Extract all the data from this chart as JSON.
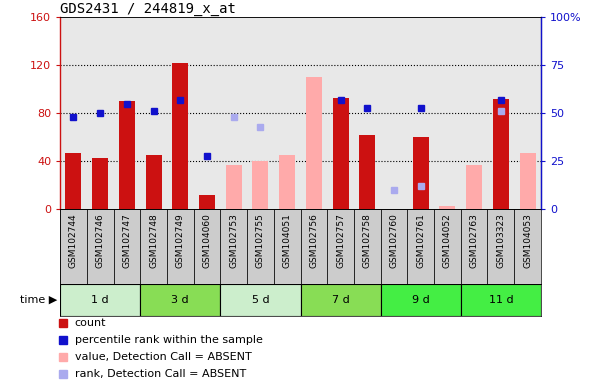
{
  "title": "GDS2431 / 244819_x_at",
  "samples": [
    "GSM102744",
    "GSM102746",
    "GSM102747",
    "GSM102748",
    "GSM102749",
    "GSM104060",
    "GSM102753",
    "GSM102755",
    "GSM104051",
    "GSM102756",
    "GSM102757",
    "GSM102758",
    "GSM102760",
    "GSM102761",
    "GSM104052",
    "GSM102763",
    "GSM103323",
    "GSM104053"
  ],
  "time_groups": [
    {
      "label": "1 d",
      "indices": [
        0,
        1,
        2
      ],
      "color": "#cceecc"
    },
    {
      "label": "3 d",
      "indices": [
        3,
        4,
        5
      ],
      "color": "#88dd55"
    },
    {
      "label": "5 d",
      "indices": [
        6,
        7,
        8
      ],
      "color": "#cceecc"
    },
    {
      "label": "7 d",
      "indices": [
        9,
        10,
        11
      ],
      "color": "#88dd55"
    },
    {
      "label": "9 d",
      "indices": [
        12,
        13,
        14
      ],
      "color": "#44ee44"
    },
    {
      "label": "11 d",
      "indices": [
        15,
        16,
        17
      ],
      "color": "#44ee44"
    }
  ],
  "count_values": [
    47,
    43,
    90,
    45,
    122,
    12,
    null,
    null,
    null,
    null,
    93,
    62,
    null,
    60,
    null,
    null,
    92,
    null
  ],
  "percentile_rank_values": [
    48,
    50,
    55,
    51,
    57,
    28,
    null,
    null,
    null,
    null,
    57,
    53,
    null,
    53,
    null,
    null,
    57,
    null
  ],
  "absent_value_values": [
    null,
    null,
    null,
    null,
    null,
    null,
    37,
    40,
    45,
    110,
    null,
    null,
    null,
    null,
    3,
    37,
    null,
    47
  ],
  "absent_rank_values": [
    null,
    null,
    null,
    null,
    null,
    null,
    48,
    43,
    null,
    null,
    null,
    null,
    10,
    12,
    null,
    null,
    51,
    null
  ],
  "ylim_left": [
    0,
    160
  ],
  "ylim_right": [
    0,
    100
  ],
  "left_ticks": [
    0,
    40,
    80,
    120,
    160
  ],
  "right_ticks": [
    0,
    25,
    50,
    75,
    100
  ],
  "bar_color_count": "#cc1111",
  "bar_color_absent_value": "#ffaaaa",
  "dot_color_percentile": "#1111cc",
  "dot_color_absent_rank": "#aaaaee",
  "plot_bg_color": "#e8e8e8",
  "xlabel_bg_color": "#cccccc",
  "legend_items": [
    {
      "label": "count",
      "color": "#cc1111"
    },
    {
      "label": "percentile rank within the sample",
      "color": "#1111cc"
    },
    {
      "label": "value, Detection Call = ABSENT",
      "color": "#ffaaaa"
    },
    {
      "label": "rank, Detection Call = ABSENT",
      "color": "#aaaaee"
    }
  ]
}
